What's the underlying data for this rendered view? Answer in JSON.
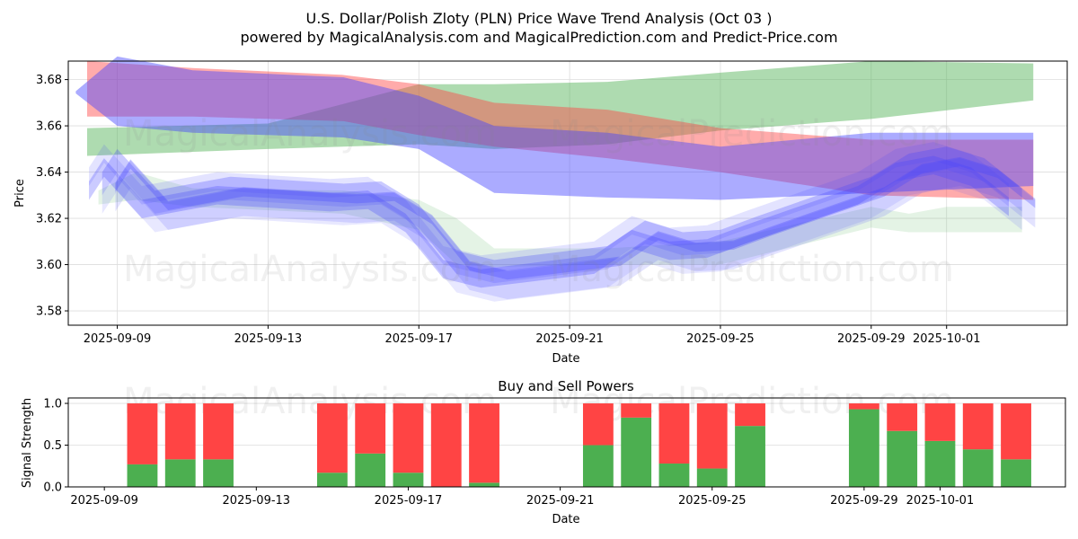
{
  "title_line1": "U.S. Dollar/Polish Zloty (PLN) Price Wave Trend Analysis (Oct 03 )",
  "title_line2": "powered by MagicalAnalysis.com and MagicalPrediction.com and Predict-Price.com",
  "watermarks": [
    "MagicalAnalysis.com",
    "MagicalPrediction.com"
  ],
  "chart_data": [
    {
      "type": "area",
      "title": "",
      "xlabel": "Date",
      "ylabel": "Price",
      "x_origin": "2025-09-09",
      "xlim": [
        -1.3,
        25.2
      ],
      "ylim": [
        3.5738,
        3.688
      ],
      "grid": true,
      "xticks": [
        {
          "day": 0,
          "label": "2025-09-09"
        },
        {
          "day": 4,
          "label": "2025-09-13"
        },
        {
          "day": 8,
          "label": "2025-09-17"
        },
        {
          "day": 12,
          "label": "2025-09-21"
        },
        {
          "day": 16,
          "label": "2025-09-25"
        },
        {
          "day": 20,
          "label": "2025-09-29"
        },
        {
          "day": 22,
          "label": "2025-10-01"
        }
      ],
      "yticks": [
        3.58,
        3.6,
        3.62,
        3.64,
        3.66,
        3.68
      ],
      "bands": [
        {
          "name": "green-long",
          "color": "#4caf50",
          "opacity": 0.45,
          "days": [
            -0.8,
            4,
            8,
            10,
            13,
            16,
            20,
            24.3
          ],
          "upper": [
            3.659,
            3.661,
            3.678,
            3.678,
            3.679,
            3.683,
            3.688,
            3.687
          ],
          "lower": [
            3.647,
            3.65,
            3.652,
            3.65,
            3.652,
            3.658,
            3.663,
            3.671
          ]
        },
        {
          "name": "red-long",
          "color": "#ff4444",
          "opacity": 0.45,
          "days": [
            -0.8,
            2,
            6,
            8,
            10,
            13,
            16,
            20,
            24.3
          ],
          "upper": [
            3.688,
            3.685,
            3.682,
            3.678,
            3.67,
            3.667,
            3.659,
            3.654,
            3.654
          ],
          "lower": [
            3.664,
            3.664,
            3.662,
            3.656,
            3.651,
            3.646,
            3.64,
            3.63,
            3.628
          ]
        },
        {
          "name": "blue-long",
          "color": "#4444ff",
          "opacity": 0.45,
          "days": [
            -1.1,
            0,
            2,
            6,
            8,
            10,
            13,
            16,
            20,
            24.3
          ],
          "upper": [
            3.675,
            3.69,
            3.684,
            3.681,
            3.673,
            3.66,
            3.657,
            3.651,
            3.657,
            3.657
          ],
          "lower": [
            3.674,
            3.66,
            3.657,
            3.655,
            3.65,
            3.631,
            3.629,
            3.628,
            3.631,
            3.634
          ]
        },
        {
          "name": "green-short",
          "color": "#4caf50",
          "opacity": 0.15,
          "days": [
            -0.5,
            0.5,
            2,
            6,
            8,
            9,
            10,
            13,
            16,
            20,
            21,
            22,
            24
          ],
          "upper": [
            3.632,
            3.64,
            3.633,
            3.632,
            3.628,
            3.62,
            3.607,
            3.607,
            3.61,
            3.625,
            3.622,
            3.625,
            3.625
          ],
          "lower": [
            3.626,
            3.628,
            3.625,
            3.622,
            3.615,
            3.6,
            3.599,
            3.6,
            3.6,
            3.616,
            3.614,
            3.614,
            3.614
          ]
        }
      ],
      "wave_center": {
        "days": [
          -0.4,
          0,
          1,
          3,
          6,
          7,
          8,
          9,
          10,
          13,
          14,
          15,
          16,
          17,
          20,
          21,
          22,
          23,
          24
        ],
        "values": [
          3.632,
          3.642,
          3.624,
          3.63,
          3.627,
          3.628,
          3.618,
          3.598,
          3.594,
          3.6,
          3.611,
          3.606,
          3.607,
          3.613,
          3.63,
          3.64,
          3.643,
          3.638,
          3.625
        ]
      },
      "waves": [
        {
          "offset": 0.0,
          "halfwidth": 0.004,
          "opacity": 0.28
        },
        {
          "offset": 0.006,
          "halfwidth": 0.005,
          "opacity": 0.18
        },
        {
          "offset": -0.006,
          "halfwidth": 0.006,
          "opacity": 0.15
        },
        {
          "offset": 0.012,
          "halfwidth": 0.004,
          "opacity": 0.15
        },
        {
          "offset": -0.002,
          "halfwidth": 0.009,
          "opacity": 0.12
        },
        {
          "offset": 0.003,
          "halfwidth": 0.002,
          "opacity": 0.3
        }
      ]
    },
    {
      "type": "bar",
      "title": "Buy and Sell Powers",
      "xlabel": "Date",
      "ylabel": "Signal Strength",
      "ylim": [
        0,
        1.065
      ],
      "xlim": [
        -0.95,
        25.3
      ],
      "yticks": [
        0.0,
        0.5,
        1.0
      ],
      "ytick_labels": [
        "0.0",
        "0.5",
        "1.0"
      ],
      "xticks": [
        {
          "day": 0,
          "label": "2025-09-09"
        },
        {
          "day": 4,
          "label": "2025-09-13"
        },
        {
          "day": 8,
          "label": "2025-09-17"
        },
        {
          "day": 12,
          "label": "2025-09-21"
        },
        {
          "day": 16,
          "label": "2025-09-25"
        },
        {
          "day": 20,
          "label": "2025-09-29"
        },
        {
          "day": 22,
          "label": "2025-10-01"
        }
      ],
      "buy_color": "#4caf50",
      "sell_color": "#ff4444",
      "days": [
        1,
        2,
        3,
        6,
        7,
        8,
        9,
        10,
        13,
        14,
        15,
        16,
        17,
        20,
        21,
        22,
        23,
        24
      ],
      "buy": [
        0.27,
        0.33,
        0.33,
        0.17,
        0.4,
        0.17,
        0.0,
        0.05,
        0.5,
        0.83,
        0.28,
        0.22,
        0.73,
        0.93,
        0.67,
        0.55,
        0.45,
        0.33
      ],
      "sell": [
        0.73,
        0.67,
        0.67,
        0.83,
        0.6,
        0.83,
        1.0,
        0.95,
        0.5,
        0.17,
        0.72,
        0.78,
        0.27,
        0.07,
        0.33,
        0.45,
        0.55,
        0.67
      ]
    }
  ]
}
